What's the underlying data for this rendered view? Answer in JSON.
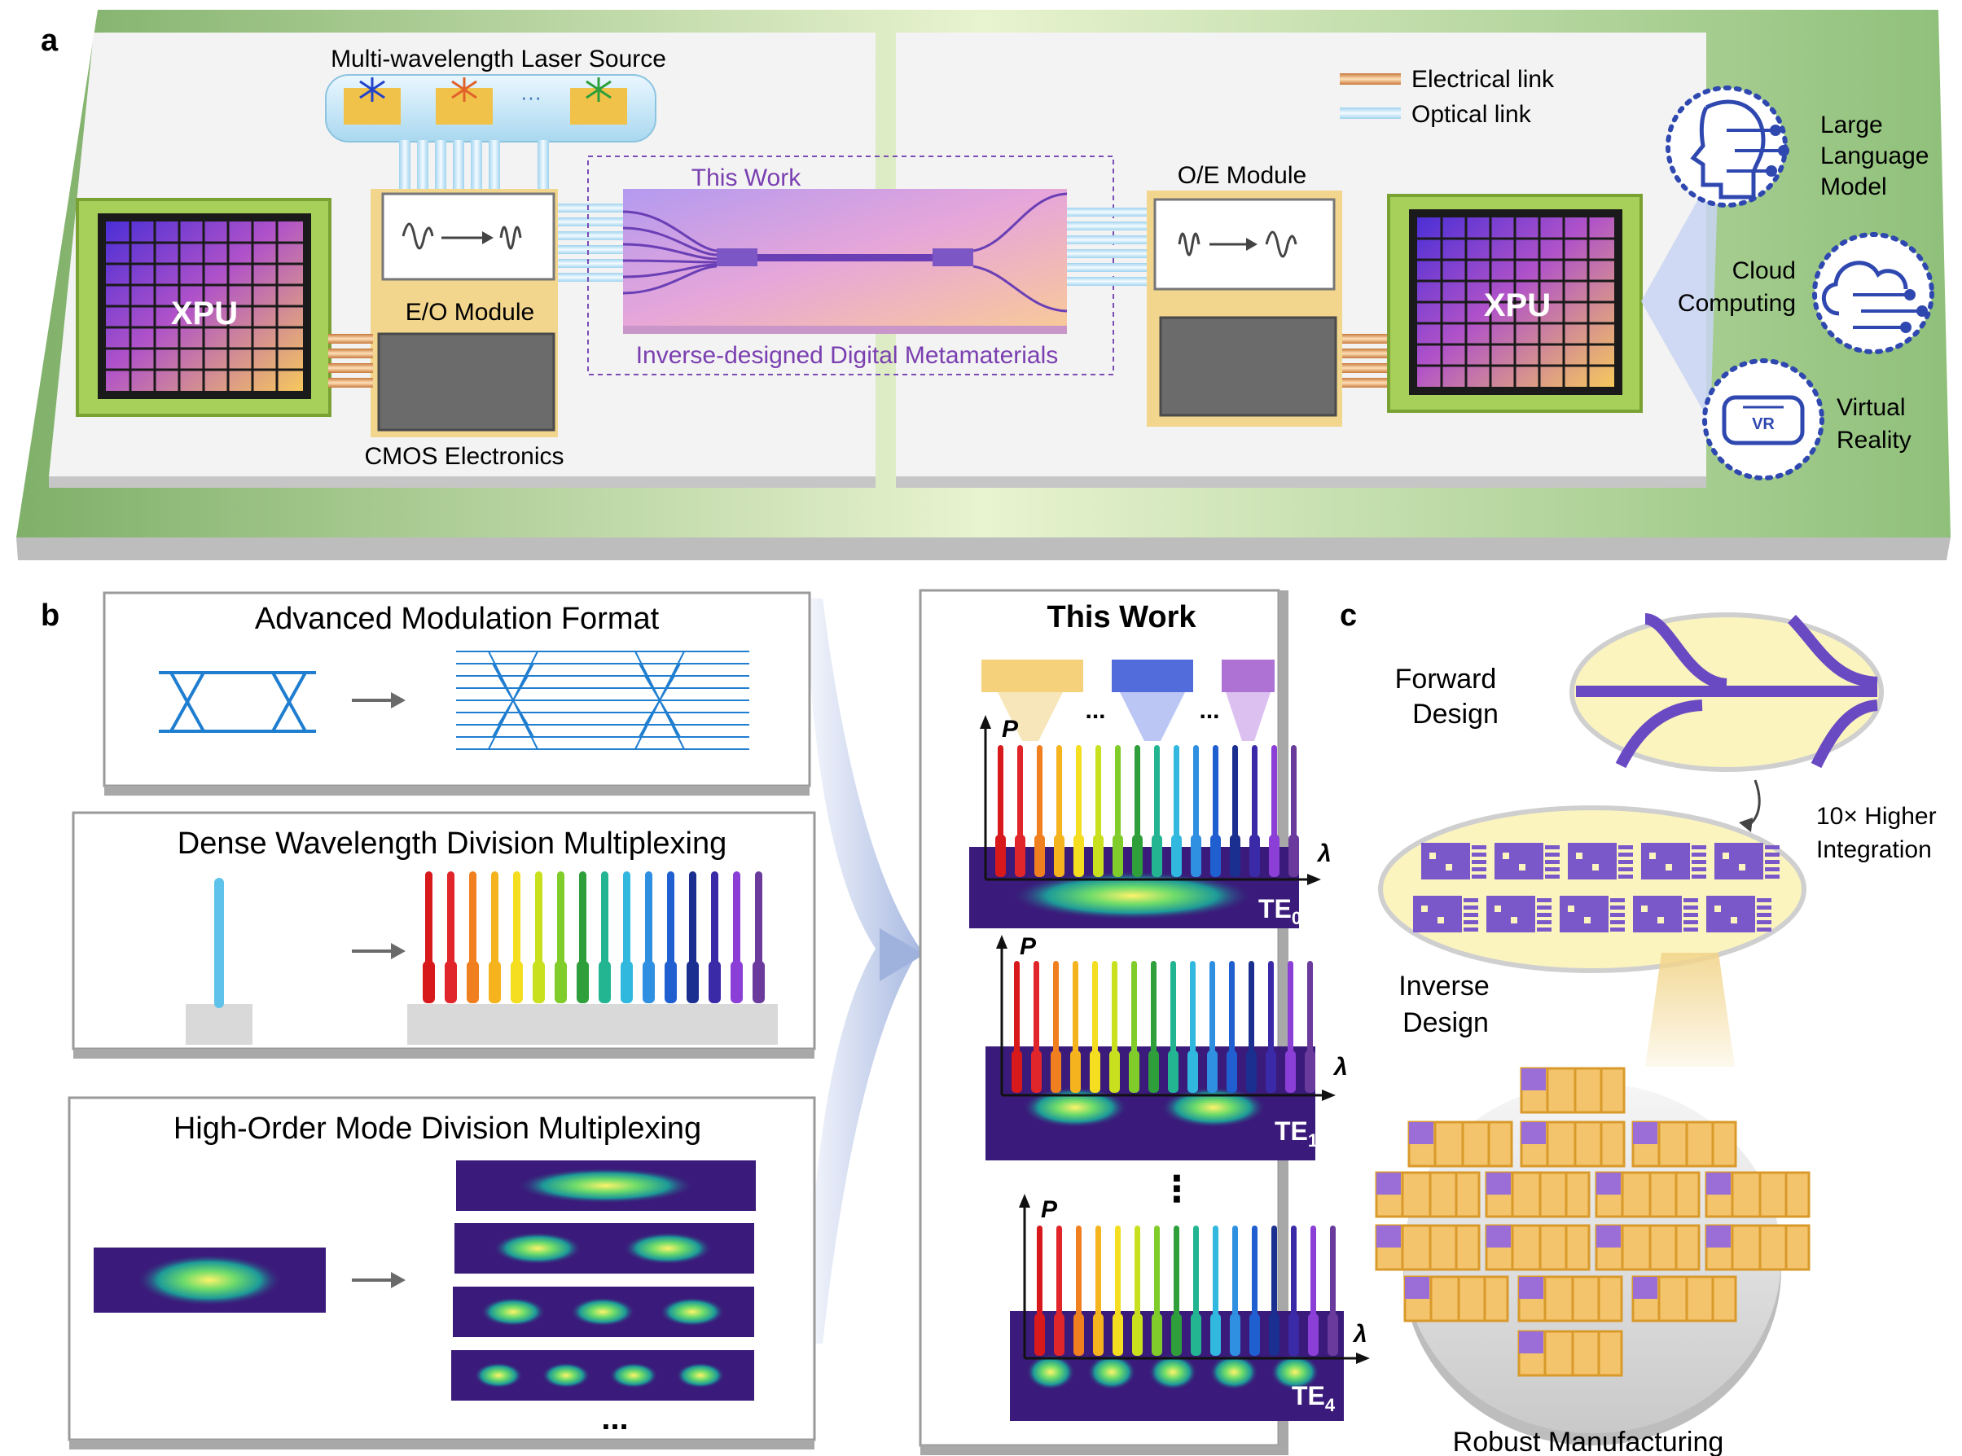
{
  "panel_a": {
    "letter": "a",
    "laser_source": "Multi-wavelength Laser Source",
    "ellipsis": "···",
    "eo_module": "E/O Module",
    "oe_module": "O/E Module",
    "cmos": "CMOS Electronics",
    "xpu_left": "XPU",
    "xpu_right": "XPU",
    "this_work": "This Work",
    "metamaterials": "Inverse-designed Digital Metamaterials",
    "legend": {
      "electrical": "Electrical link",
      "optical": "Optical link"
    },
    "apps": {
      "llm": [
        "Large",
        "Language",
        "Model"
      ],
      "cloud": [
        "Cloud",
        "Computing"
      ],
      "vr": [
        "Virtual",
        "Reality"
      ],
      "vr_badge": "VR"
    }
  },
  "panel_b": {
    "letter": "b",
    "modulation": "Advanced Modulation Format",
    "dwdm": "Dense Wavelength Division Multiplexing",
    "mdm": "High-Order Mode Division Multiplexing",
    "dots": "...",
    "this_work": "This Work",
    "p_axis": "P",
    "lambda_axis": "λ",
    "mode_labels": [
      {
        "base": "TE",
        "sub": "0"
      },
      {
        "base": "TE",
        "sub": "1"
      },
      {
        "base": "TE",
        "sub": "4"
      }
    ],
    "vdots": "⋮",
    "wavelength_colors": [
      "#d7191c",
      "#e0262a",
      "#f07f1f",
      "#f5b31e",
      "#f4de1f",
      "#c9e01e",
      "#7fcc2a",
      "#2e9f3b",
      "#23b591",
      "#31b8df",
      "#2f8fe0",
      "#1f5fd0",
      "#1a2f8f",
      "#3b2aa8",
      "#8c3fd6",
      "#6a3b9c"
    ]
  },
  "panel_c": {
    "letter": "c",
    "forward": [
      "Forward",
      "Design"
    ],
    "inverse": [
      "Inverse",
      "Design"
    ],
    "integration": [
      "10× Higher",
      "Integration"
    ],
    "robust": "Robust Manufacturing"
  }
}
